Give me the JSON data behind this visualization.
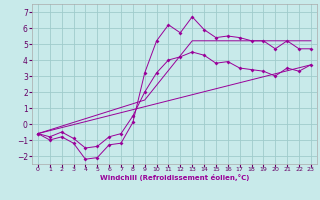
{
  "xlabel": "Windchill (Refroidissement éolien,°C)",
  "xlim": [
    -0.5,
    23.5
  ],
  "ylim": [
    -2.5,
    7.5
  ],
  "yticks": [
    -2,
    -1,
    0,
    1,
    2,
    3,
    4,
    5,
    6,
    7
  ],
  "xticks": [
    0,
    1,
    2,
    3,
    4,
    5,
    6,
    7,
    8,
    9,
    10,
    11,
    12,
    13,
    14,
    15,
    16,
    17,
    18,
    19,
    20,
    21,
    22,
    23
  ],
  "background_color": "#c8eaea",
  "grid_color": "#a0cccc",
  "line_color": "#990099",
  "markersize": 2.0,
  "line1_x": [
    0,
    1,
    2,
    3,
    4,
    5,
    6,
    7,
    8,
    9,
    10,
    11,
    12,
    13,
    14,
    15,
    16,
    17,
    18,
    19,
    20,
    21,
    22,
    23
  ],
  "line1_y": [
    -0.6,
    -1.0,
    -0.8,
    -1.2,
    -2.2,
    -2.1,
    -1.3,
    -1.2,
    0.1,
    3.2,
    5.2,
    6.2,
    5.7,
    6.7,
    5.9,
    5.4,
    5.5,
    5.4,
    5.2,
    5.2,
    4.7,
    5.2,
    4.7,
    4.7
  ],
  "line2_x": [
    0,
    1,
    2,
    3,
    4,
    5,
    6,
    7,
    8,
    9,
    10,
    11,
    12,
    13,
    14,
    15,
    16,
    17,
    18,
    19,
    20,
    21,
    22,
    23
  ],
  "line2_y": [
    -0.6,
    -0.8,
    -0.5,
    -0.9,
    -1.5,
    -1.4,
    -0.8,
    -0.6,
    0.5,
    2.0,
    3.2,
    4.0,
    4.2,
    4.5,
    4.3,
    3.8,
    3.9,
    3.5,
    3.4,
    3.3,
    3.0,
    3.5,
    3.3,
    3.7
  ],
  "line3_x": [
    0,
    23
  ],
  "line3_y": [
    -0.6,
    3.7
  ],
  "line4_x": [
    0,
    9,
    13,
    23
  ],
  "line4_y": [
    -0.6,
    1.5,
    5.2,
    5.2
  ]
}
